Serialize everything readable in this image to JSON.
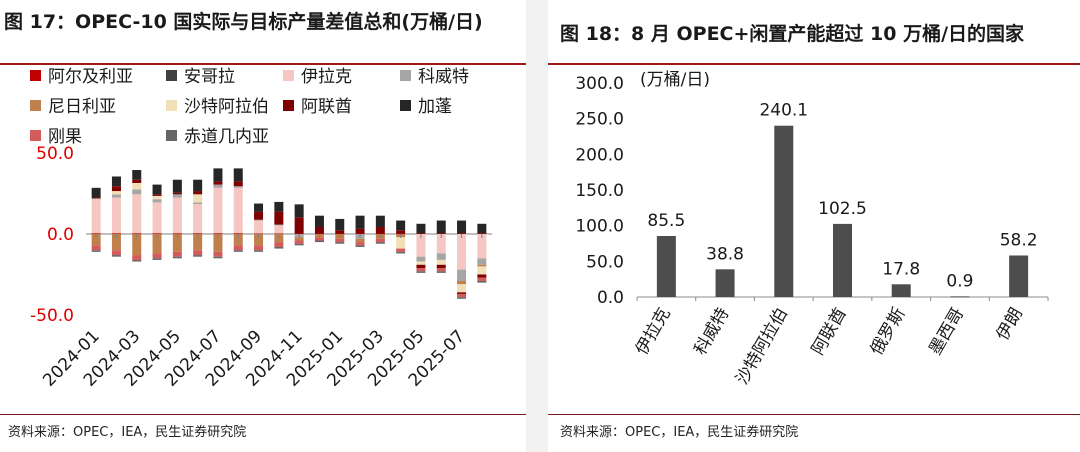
{
  "left": {
    "title": "图 17：OPEC-10 国实际与目标产量差值总和(万桶/日)",
    "source": "资料来源：OPEC，IEA，民生证券研究院",
    "chart_data": {
      "type": "bar",
      "stacked": true,
      "title": "OPEC-10 国实际与目标产量差值总和(万桶/日)",
      "xlabel": "",
      "ylabel": "",
      "ylim": [
        -50,
        50
      ],
      "yticks": [
        "50.0",
        "0.0",
        "-50.0"
      ],
      "categories": [
        "2024-01",
        "2024-02",
        "2024-03",
        "2024-04",
        "2024-05",
        "2024-06",
        "2024-07",
        "2024-08",
        "2024-09",
        "2024-10",
        "2024-11",
        "2024-12",
        "2025-01",
        "2025-02",
        "2025-03",
        "2025-04",
        "2025-05",
        "2025-06",
        "2025-07",
        "2025-08"
      ],
      "xtick_labels": [
        "2024-01",
        "2024-03",
        "2024-05",
        "2024-07",
        "2024-09",
        "2024-11",
        "2025-01",
        "2025-03",
        "2025-05",
        "2025-07"
      ],
      "series": [
        {
          "name": "阿尔及利亚",
          "color": "#c00000",
          "values": [
            0.5,
            0.5,
            0.5,
            0.5,
            0.5,
            0.5,
            0.5,
            0.5,
            0.3,
            0.3,
            0.3,
            0.3,
            0.3,
            0.3,
            0.3,
            0.3,
            0.3,
            0.3,
            0.3,
            0.3
          ]
        },
        {
          "name": "安哥拉",
          "color": "#404040",
          "values": [
            0,
            0,
            0,
            0,
            0,
            0,
            0,
            0,
            0,
            0,
            0,
            0,
            0,
            0,
            0,
            0,
            0,
            0,
            0,
            0
          ]
        },
        {
          "name": "伊拉克",
          "color": "#f4c7c3",
          "values": [
            21,
            22,
            24,
            19,
            22,
            18,
            28,
            28,
            8,
            5,
            0,
            0,
            0,
            0,
            0,
            0,
            -14,
            -12,
            -22,
            -15
          ]
        },
        {
          "name": "科威特",
          "color": "#a6a6a6",
          "values": [
            0.5,
            2,
            3,
            2,
            2,
            1,
            2,
            1,
            0.5,
            0.5,
            -2,
            0,
            0,
            -3,
            0,
            0,
            -3,
            -4,
            -7,
            -4
          ]
        },
        {
          "name": "尼日利亚",
          "color": "#c0804c",
          "values": [
            -7,
            -10,
            -13,
            -12,
            -11,
            -10,
            -11,
            -7,
            -7,
            -5,
            -2,
            -2,
            -3,
            -2,
            -3,
            -2,
            0,
            0,
            -2,
            -1
          ]
        },
        {
          "name": "沙特阿拉伯",
          "color": "#f1dfb8",
          "values": [
            0,
            2,
            4,
            2,
            0,
            5,
            0,
            0,
            0,
            0,
            0,
            0,
            0,
            0,
            0,
            -7,
            -2,
            -3,
            -5,
            -5
          ]
        },
        {
          "name": "阿联酋",
          "color": "#7f0000",
          "values": [
            0.5,
            3,
            2,
            1,
            1,
            2,
            2,
            3,
            5,
            8,
            10,
            4,
            2,
            3,
            4,
            2,
            -2,
            -2,
            -1,
            -2
          ]
        },
        {
          "name": "加蓬",
          "color": "#262626",
          "values": [
            6,
            6,
            6,
            6,
            8,
            7,
            8,
            8,
            5,
            6,
            8,
            7,
            7,
            8,
            7,
            6,
            6,
            8,
            8,
            6
          ]
        },
        {
          "name": "刚果",
          "color": "#d45b5b",
          "values": [
            -3,
            -3,
            -3,
            -3,
            -3,
            -3,
            -3,
            -3,
            -3,
            -3,
            -2,
            -2,
            -2,
            -2,
            -2,
            -2,
            -2,
            -2,
            -2,
            -2
          ]
        },
        {
          "name": "赤道几内亚",
          "color": "#666666",
          "values": [
            -1,
            -1,
            -1,
            -1,
            -1,
            -1,
            -1,
            -1,
            -1,
            -1,
            -1,
            -1,
            -1,
            -1,
            -1,
            -1,
            -1,
            -1,
            -1,
            -1
          ]
        }
      ]
    }
  },
  "right": {
    "title": "图 18：8 月 OPEC+闲置产能超过 10 万桶/日的国家",
    "source": "资料来源：OPEC，IEA，民生证券研究院",
    "chart_data": {
      "type": "bar",
      "title": "8 月 OPEC+闲置产能超过 10 万桶/日的国家",
      "ylabel": "(万桶/日)",
      "xlabel": "",
      "ylim": [
        0,
        300
      ],
      "yticks": [
        "300.0",
        "250.0",
        "200.0",
        "150.0",
        "100.0",
        "50.0",
        "0.0"
      ],
      "categories": [
        "伊拉克",
        "科威特",
        "沙特阿拉伯",
        "阿联酋",
        "俄罗斯",
        "墨西哥",
        "伊朗"
      ],
      "values": [
        85.5,
        38.8,
        240.1,
        102.5,
        17.8,
        0.9,
        58.2
      ],
      "value_labels": [
        "85.5",
        "38.8",
        "240.1",
        "102.5",
        "17.8",
        "0.9",
        "58.2"
      ],
      "bar_color": "#4d4d4d"
    }
  }
}
